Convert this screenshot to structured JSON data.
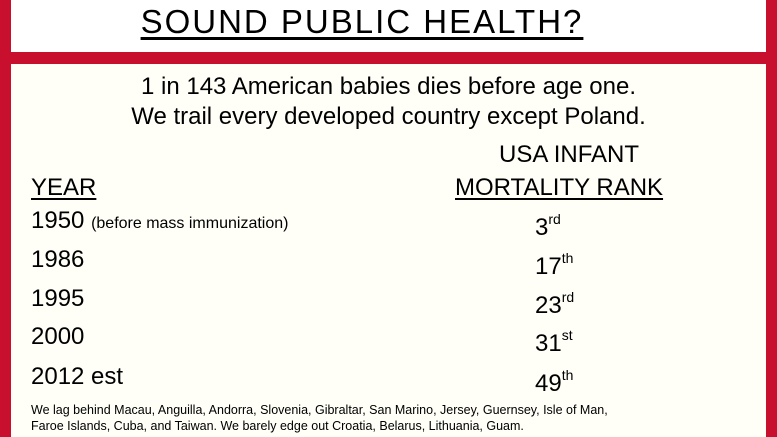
{
  "title": "SOUND PUBLIC HEALTH?",
  "intro": {
    "line1": "1 in 143 American babies dies before age one.",
    "line2": "We trail every developed country except Poland."
  },
  "table": {
    "year_header": "YEAR",
    "rank_header_line1": "USA INFANT",
    "rank_header_line2": "MORTALITY RANK",
    "rows": [
      {
        "year": "1950",
        "note": "(before mass immunization)",
        "rank": "3",
        "suffix": "rd"
      },
      {
        "year": "1986",
        "note": "",
        "rank": "17",
        "suffix": "th"
      },
      {
        "year": "1995",
        "note": "",
        "rank": "23",
        "suffix": "rd"
      },
      {
        "year": "2000",
        "note": "",
        "rank": "31",
        "suffix": "st"
      },
      {
        "year": "2012 est",
        "note": "",
        "rank": "49",
        "suffix": "th"
      }
    ]
  },
  "footnote": {
    "line1": "We lag behind Macau, Anguilla, Andorra, Slovenia, Gibraltar, San Marino, Jersey, Guernsey, Isle of Man,",
    "line2": "Faroe Islands, Cuba, and Taiwan.  We barely edge out Croatia, Belarus, Lithuania, Guam."
  },
  "colors": {
    "border": "#c8102e",
    "panel": "#fffff8"
  }
}
